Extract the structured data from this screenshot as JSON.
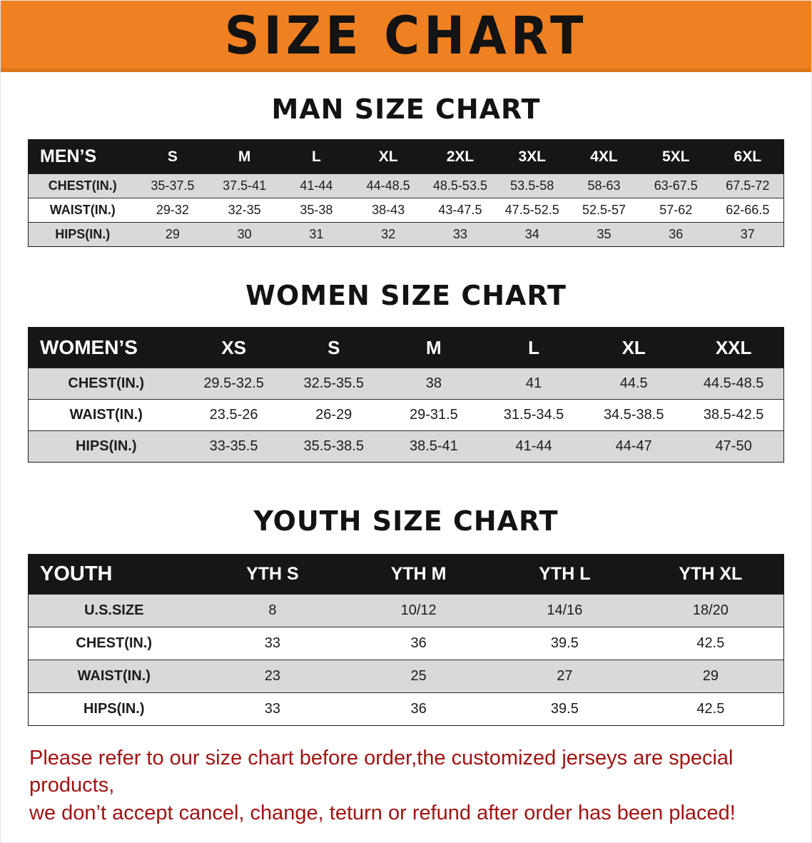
{
  "banner": {
    "title": "SIZE CHART"
  },
  "colors": {
    "banner_bg": "#F08122",
    "table_header_bg": "#161616",
    "row_stripe": "#D9D9D9",
    "disclaimer_text": "#A21313"
  },
  "sections": [
    {
      "id": "men",
      "heading": "MAN SIZE CHART",
      "table": {
        "header": [
          "MEN’S",
          "S",
          "M",
          "L",
          "XL",
          "2XL",
          "3XL",
          "4XL",
          "5XL",
          "6XL"
        ],
        "rows": [
          [
            "CHEST(IN.)",
            "35-37.5",
            "37.5-41",
            "41-44",
            "44-48.5",
            "48.5-53.5",
            "53.5-58",
            "58-63",
            "63-67.5",
            "67.5-72"
          ],
          [
            "WAIST(IN.)",
            "29-32",
            "32-35",
            "35-38",
            "38-43",
            "43-47.5",
            "47.5-52.5",
            "52.5-57",
            "57-62",
            "62-66.5"
          ],
          [
            "HIPS(IN.)",
            "29",
            "30",
            "31",
            "32",
            "33",
            "34",
            "35",
            "36",
            "37"
          ]
        ]
      }
    },
    {
      "id": "women",
      "heading": "WOMEN SIZE CHART",
      "table": {
        "header": [
          "WOMEN’S",
          "XS",
          "S",
          "M",
          "L",
          "XL",
          "XXL"
        ],
        "rows": [
          [
            "CHEST(IN.)",
            "29.5-32.5",
            "32.5-35.5",
            "38",
            "41",
            "44.5",
            "44.5-48.5"
          ],
          [
            "WAIST(IN.)",
            "23.5-26",
            "26-29",
            "29-31.5",
            "31.5-34.5",
            "34.5-38.5",
            "38.5-42.5"
          ],
          [
            "HIPS(IN.)",
            "33-35.5",
            "35.5-38.5",
            "38.5-41",
            "41-44",
            "44-47",
            "47-50"
          ]
        ]
      }
    },
    {
      "id": "youth",
      "heading": "YOUTH SIZE CHART",
      "table": {
        "header": [
          "YOUTH",
          "YTH S",
          "YTH M",
          "YTH L",
          "YTH XL"
        ],
        "rows": [
          [
            "U.S.SIZE",
            "8",
            "10/12",
            "14/16",
            "18/20"
          ],
          [
            "CHEST(IN.)",
            "33",
            "36",
            "39.5",
            "42.5"
          ],
          [
            "WAIST(IN.)",
            "23",
            "25",
            "27",
            "29"
          ],
          [
            "HIPS(IN.)",
            "33",
            "36",
            "39.5",
            "42.5"
          ]
        ]
      }
    }
  ],
  "disclaimer": {
    "line1": "Please refer to our size chart before order,the customized jerseys are special products,",
    "line2": "we don’t accept cancel, change, teturn or refund after order has been placed!"
  }
}
